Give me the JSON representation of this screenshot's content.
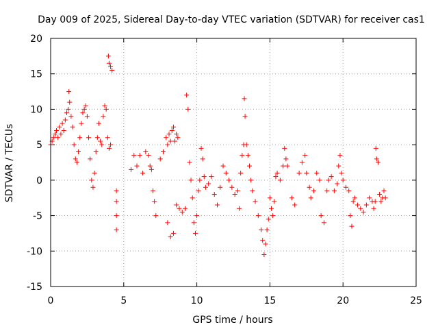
{
  "chart_data": {
    "type": "scatter",
    "title": "Day 009 of 2025, Sidereal Day-to-day VTEC variation (SDTVAR) for receiver cas1",
    "xlabel": "GPS time / hours",
    "ylabel": "SDTVAR / TECUs",
    "xlim": [
      0,
      25
    ],
    "ylim": [
      -15,
      20
    ],
    "xticks": [
      0,
      5,
      10,
      15,
      20,
      25
    ],
    "yticks": [
      -15,
      -10,
      -5,
      0,
      5,
      10,
      15,
      20
    ],
    "xtick_labels": [
      "0",
      "5",
      "10",
      "15",
      "20",
      "25"
    ],
    "ytick_labels": [
      "-15",
      "-10",
      "-5",
      "0",
      "5",
      "10",
      "15",
      "20"
    ],
    "grid": true,
    "marker": "+",
    "color": "#ff0000",
    "series": [
      {
        "name": "SDTVAR",
        "points": [
          [
            0.0,
            5.0
          ],
          [
            0.1,
            5.5
          ],
          [
            0.2,
            6.0
          ],
          [
            0.3,
            6.5
          ],
          [
            0.4,
            7.0
          ],
          [
            0.5,
            6.0
          ],
          [
            0.6,
            7.5
          ],
          [
            0.7,
            6.5
          ],
          [
            0.8,
            8.0
          ],
          [
            0.9,
            7.0
          ],
          [
            1.0,
            8.5
          ],
          [
            1.1,
            9.5
          ],
          [
            1.2,
            10.0
          ],
          [
            1.25,
            12.5
          ],
          [
            1.3,
            11.0
          ],
          [
            1.4,
            9.0
          ],
          [
            1.5,
            7.5
          ],
          [
            1.6,
            5.0
          ],
          [
            1.7,
            3.0
          ],
          [
            1.8,
            2.5
          ],
          [
            1.9,
            4.0
          ],
          [
            2.0,
            6.0
          ],
          [
            2.1,
            8.0
          ],
          [
            2.2,
            9.5
          ],
          [
            2.3,
            10.0
          ],
          [
            2.4,
            10.5
          ],
          [
            2.5,
            9.0
          ],
          [
            2.6,
            6.0
          ],
          [
            2.7,
            3.0
          ],
          [
            2.8,
            0.0
          ],
          [
            2.9,
            -1.0
          ],
          [
            3.0,
            1.0
          ],
          [
            3.1,
            4.0
          ],
          [
            3.2,
            6.0
          ],
          [
            3.3,
            8.0
          ],
          [
            3.4,
            5.5
          ],
          [
            3.5,
            5.0
          ],
          [
            3.6,
            9.0
          ],
          [
            3.7,
            10.5
          ],
          [
            3.8,
            10.0
          ],
          [
            3.9,
            6.0
          ],
          [
            4.0,
            4.5
          ],
          [
            4.1,
            5.0
          ],
          [
            3.95,
            17.5
          ],
          [
            4.0,
            16.5
          ],
          [
            4.1,
            16.0
          ],
          [
            4.2,
            15.5
          ],
          [
            4.5,
            -1.5
          ],
          [
            4.5,
            -3.0
          ],
          [
            4.5,
            -5.0
          ],
          [
            4.5,
            -7.0
          ],
          [
            5.5,
            1.5
          ],
          [
            5.7,
            3.5
          ],
          [
            5.9,
            2.0
          ],
          [
            6.1,
            3.5
          ],
          [
            6.3,
            1.0
          ],
          [
            6.5,
            4.0
          ],
          [
            6.7,
            3.5
          ],
          [
            6.8,
            2.0
          ],
          [
            6.9,
            1.5
          ],
          [
            7.0,
            -1.5
          ],
          [
            7.1,
            -3.0
          ],
          [
            7.2,
            -5.0
          ],
          [
            7.5,
            3.0
          ],
          [
            7.7,
            4.0
          ],
          [
            7.9,
            6.0
          ],
          [
            8.0,
            5.0
          ],
          [
            8.1,
            6.5
          ],
          [
            8.2,
            5.5
          ],
          [
            8.3,
            7.0
          ],
          [
            8.4,
            7.5
          ],
          [
            8.5,
            5.5
          ],
          [
            8.6,
            6.5
          ],
          [
            8.7,
            6.0
          ],
          [
            8.0,
            -6.0
          ],
          [
            8.2,
            -8.0
          ],
          [
            8.4,
            -7.5
          ],
          [
            8.6,
            -3.5
          ],
          [
            8.8,
            -4.0
          ],
          [
            9.0,
            -4.5
          ],
          [
            9.2,
            -4.0
          ],
          [
            9.3,
            12.0
          ],
          [
            9.4,
            10.0
          ],
          [
            9.5,
            2.5
          ],
          [
            9.6,
            0.0
          ],
          [
            9.7,
            -2.5
          ],
          [
            9.8,
            -6.0
          ],
          [
            9.9,
            -7.5
          ],
          [
            10.0,
            -5.0
          ],
          [
            10.1,
            -1.5
          ],
          [
            10.2,
            0.0
          ],
          [
            10.3,
            4.5
          ],
          [
            10.4,
            3.0
          ],
          [
            10.5,
            0.5
          ],
          [
            10.6,
            -1.0
          ],
          [
            10.8,
            -0.5
          ],
          [
            11.0,
            0.5
          ],
          [
            11.2,
            -2.0
          ],
          [
            11.4,
            -3.5
          ],
          [
            11.6,
            -1.0
          ],
          [
            11.8,
            2.0
          ],
          [
            12.0,
            1.0
          ],
          [
            12.2,
            0.0
          ],
          [
            12.4,
            -1.0
          ],
          [
            12.6,
            -2.0
          ],
          [
            12.8,
            -1.5
          ],
          [
            12.9,
            -4.0
          ],
          [
            13.0,
            1.0
          ],
          [
            13.1,
            3.5
          ],
          [
            13.2,
            5.0
          ],
          [
            13.25,
            11.5
          ],
          [
            13.3,
            9.0
          ],
          [
            13.4,
            5.0
          ],
          [
            13.5,
            3.5
          ],
          [
            13.6,
            2.0
          ],
          [
            13.7,
            0.0
          ],
          [
            13.8,
            -1.5
          ],
          [
            14.0,
            -3.0
          ],
          [
            14.2,
            -5.0
          ],
          [
            14.4,
            -7.0
          ],
          [
            14.5,
            -8.5
          ],
          [
            14.6,
            -10.5
          ],
          [
            14.7,
            -9.0
          ],
          [
            14.8,
            -7.0
          ],
          [
            14.9,
            -5.5
          ],
          [
            15.0,
            -2.5
          ],
          [
            15.1,
            -4.0
          ],
          [
            15.2,
            -5.0
          ],
          [
            15.3,
            -3.0
          ],
          [
            15.4,
            0.5
          ],
          [
            15.5,
            1.0
          ],
          [
            15.7,
            0.0
          ],
          [
            15.9,
            2.0
          ],
          [
            16.0,
            4.5
          ],
          [
            16.1,
            3.0
          ],
          [
            16.2,
            2.0
          ],
          [
            16.5,
            -2.5
          ],
          [
            16.7,
            -3.5
          ],
          [
            17.0,
            1.0
          ],
          [
            17.2,
            2.5
          ],
          [
            17.4,
            3.5
          ],
          [
            17.5,
            1.0
          ],
          [
            17.7,
            -1.0
          ],
          [
            17.8,
            -2.5
          ],
          [
            18.0,
            -1.5
          ],
          [
            18.2,
            1.0
          ],
          [
            18.4,
            0.0
          ],
          [
            18.5,
            -5.0
          ],
          [
            18.7,
            -6.0
          ],
          [
            18.9,
            -1.5
          ],
          [
            19.0,
            0.0
          ],
          [
            19.2,
            0.5
          ],
          [
            19.4,
            -1.5
          ],
          [
            19.6,
            -0.5
          ],
          [
            19.7,
            2.0
          ],
          [
            19.8,
            3.5
          ],
          [
            19.9,
            1.0
          ],
          [
            20.0,
            0.0
          ],
          [
            20.2,
            -1.0
          ],
          [
            20.4,
            -1.5
          ],
          [
            20.5,
            -5.0
          ],
          [
            20.6,
            -6.5
          ],
          [
            20.7,
            -3.0
          ],
          [
            20.8,
            -2.5
          ],
          [
            21.0,
            -3.5
          ],
          [
            21.2,
            -4.0
          ],
          [
            21.4,
            -4.5
          ],
          [
            21.6,
            -3.5
          ],
          [
            21.8,
            -2.5
          ],
          [
            22.0,
            -3.0
          ],
          [
            22.1,
            -4.0
          ],
          [
            22.2,
            -3.0
          ],
          [
            22.25,
            4.5
          ],
          [
            22.3,
            3.0
          ],
          [
            22.4,
            2.5
          ],
          [
            22.5,
            -2.0
          ],
          [
            22.6,
            -3.0
          ],
          [
            22.7,
            -2.5
          ],
          [
            22.8,
            -1.5
          ],
          [
            22.9,
            -2.5
          ]
        ]
      }
    ]
  }
}
